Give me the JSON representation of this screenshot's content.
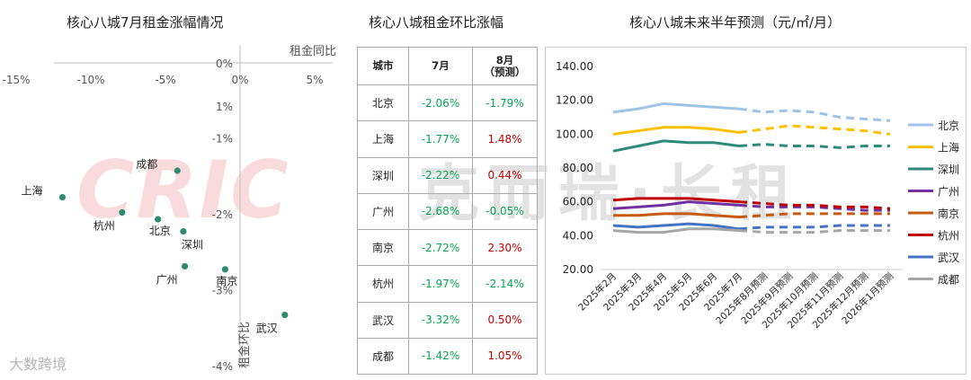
{
  "chart_data": [
    {
      "type": "scatter",
      "title": "核心八城7月租金涨幅情况",
      "xlabel": "租金同比",
      "ylabel": "租金环比",
      "xlim": [
        -15,
        5
      ],
      "ylim": [
        -4,
        1
      ],
      "x_ticks": [
        "-15%",
        "-10%",
        "-5%",
        "0%",
        "5%"
      ],
      "y_ticks": [
        "1%",
        "0%",
        "-1%",
        "-2%",
        "-3%",
        "-4%"
      ],
      "points": [
        {
          "label": "上海",
          "x": -11.9,
          "y": -1.77,
          "lpos": "left"
        },
        {
          "label": "成都",
          "x": -4.2,
          "y": -1.42,
          "lpos": "left"
        },
        {
          "label": "杭州",
          "x": -7.9,
          "y": -1.97,
          "lpos": "below-left"
        },
        {
          "label": "北京",
          "x": -5.5,
          "y": -2.06,
          "lpos": "below"
        },
        {
          "label": "深圳",
          "x": -3.8,
          "y": -2.22,
          "lpos": "below-right"
        },
        {
          "label": "广州",
          "x": -3.7,
          "y": -2.68,
          "lpos": "below-left"
        },
        {
          "label": "南京",
          "x": -1.0,
          "y": -2.72,
          "lpos": "below"
        },
        {
          "label": "武汉",
          "x": 3.0,
          "y": -3.32,
          "lpos": "below-left"
        }
      ],
      "marker_color": "#2e8b6f"
    },
    {
      "type": "table",
      "title": "核心八城租金环比涨幅",
      "columns": [
        "城市",
        "7月",
        "8月\n（预测）"
      ],
      "rows": [
        [
          "北京",
          "-2.06%",
          "-1.79%"
        ],
        [
          "上海",
          "-1.77%",
          "1.48%"
        ],
        [
          "深圳",
          "-2.22%",
          "0.44%"
        ],
        [
          "广州",
          "-2.68%",
          "-0.05%"
        ],
        [
          "南京",
          "-2.72%",
          "2.30%"
        ],
        [
          "杭州",
          "-1.97%",
          "-2.14%"
        ],
        [
          "武汉",
          "-3.32%",
          "0.50%"
        ],
        [
          "成都",
          "-1.42%",
          "1.05%"
        ]
      ]
    },
    {
      "type": "line",
      "title": "核心八城未来半年预测（元/㎡/月）",
      "categories": [
        "2025年2月",
        "2025年3月",
        "2025年4月",
        "2025年5月",
        "2025年6月",
        "2025年7月",
        "2025年8月预测",
        "2025年9月预测",
        "2025年10月预测",
        "2025年11月预测",
        "2025年12月预测",
        "2026年1月预测"
      ],
      "actual_months": 6,
      "ylim": [
        20,
        140
      ],
      "y_ticks": [
        "140.00",
        "120.00",
        "100.00",
        "80.00",
        "60.00",
        "40.00",
        "20.00"
      ],
      "series": [
        {
          "name": "北京",
          "color": "#9dc3e6",
          "values": [
            113,
            115,
            118,
            117,
            116,
            115,
            113,
            114,
            113,
            110,
            109,
            108
          ]
        },
        {
          "name": "上海",
          "color": "#ffc000",
          "values": [
            100,
            102,
            104,
            104,
            103,
            101,
            103,
            105,
            104,
            103,
            102,
            100
          ]
        },
        {
          "name": "深圳",
          "color": "#2e8b7a",
          "values": [
            90,
            93,
            96,
            95,
            95,
            93,
            94,
            93,
            93,
            92,
            93,
            93
          ]
        },
        {
          "name": "广州",
          "color": "#7030a0",
          "values": [
            56,
            57,
            58,
            60,
            59,
            58,
            57,
            57,
            57,
            56,
            55,
            55
          ]
        },
        {
          "name": "南京",
          "color": "#c55a11",
          "values": [
            52,
            52,
            53,
            53,
            52,
            51,
            52,
            53,
            53,
            53,
            53,
            53
          ]
        },
        {
          "name": "杭州",
          "color": "#c00000",
          "values": [
            61,
            62,
            62,
            62,
            61,
            60,
            59,
            58,
            58,
            57,
            57,
            56
          ]
        },
        {
          "name": "武汉",
          "color": "#4472c4",
          "values": [
            46,
            45,
            46,
            47,
            46,
            44,
            45,
            45,
            45,
            46,
            46,
            46
          ]
        },
        {
          "name": "成都",
          "color": "#a6a6a6",
          "values": [
            43,
            42,
            42,
            44,
            44,
            43,
            42,
            42,
            42,
            43,
            43,
            43
          ]
        }
      ]
    }
  ],
  "watermark": {
    "logo": "CRIC",
    "brand": "克而瑞·长租"
  },
  "credit": "大数跨境"
}
